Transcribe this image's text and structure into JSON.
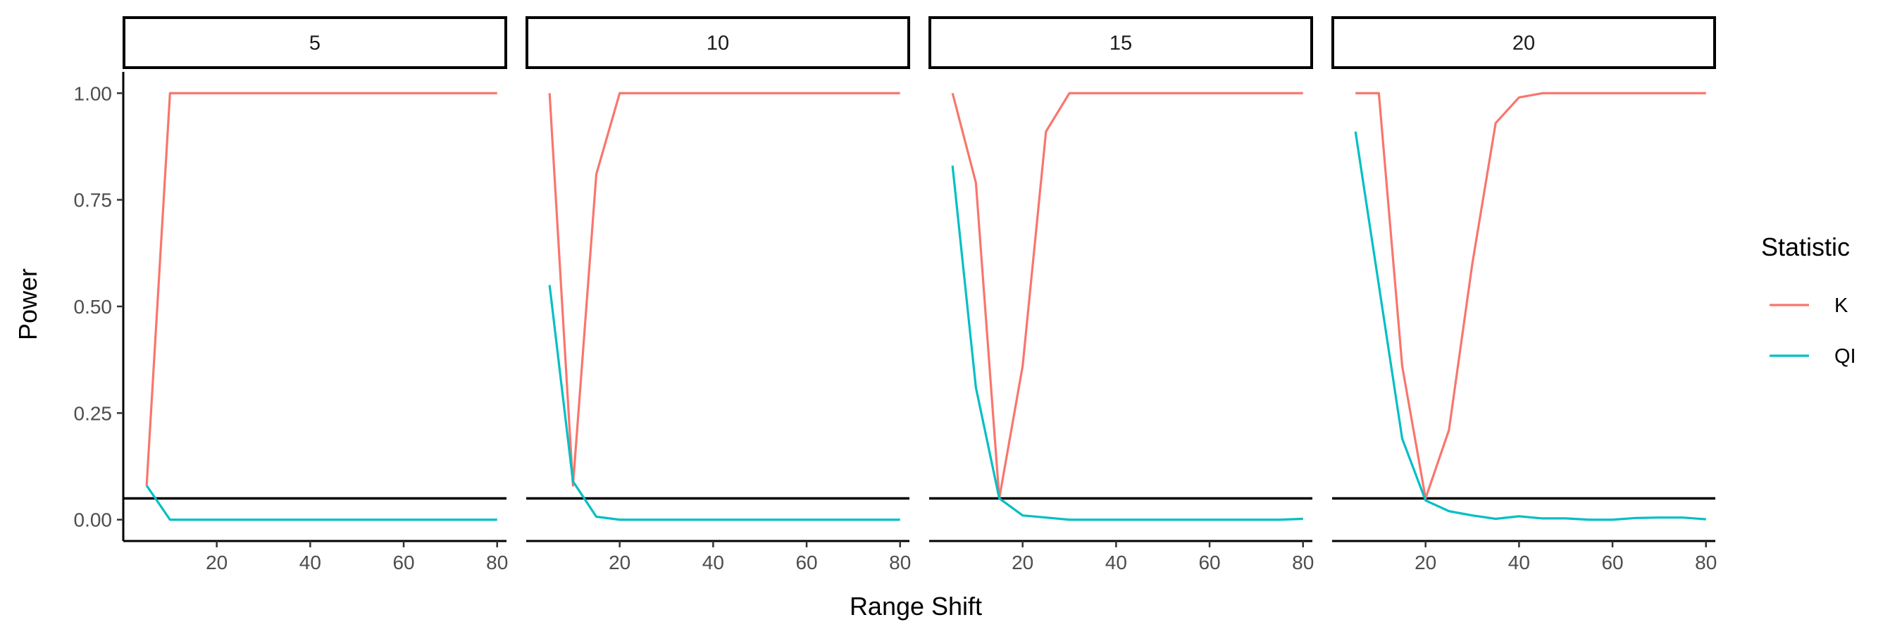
{
  "chart_data": {
    "type": "line",
    "title": "",
    "xlabel": "Range Shift",
    "ylabel": "Power",
    "xlim": [
      0,
      82
    ],
    "ylim": [
      -0.05,
      1.05
    ],
    "x_ticks": [
      20,
      40,
      60,
      80
    ],
    "y_ticks": [
      0.0,
      0.25,
      0.5,
      0.75,
      1.0
    ],
    "y_tick_labels": [
      "0.00",
      "0.25",
      "0.50",
      "0.75",
      "1.00"
    ],
    "x_tick_labels": [
      "20",
      "40",
      "60",
      "80"
    ],
    "reference_line": 0.05,
    "grid": false,
    "legend": {
      "title": "Statistic",
      "position": "right",
      "entries": [
        {
          "label": "K",
          "color": "#F8766D"
        },
        {
          "label": "QI",
          "color": "#00BFC4"
        }
      ]
    },
    "panels": [
      {
        "label": "5",
        "series": [
          {
            "name": "K",
            "color": "#F8766D",
            "x": [
              5,
              10,
              15,
              20,
              25,
              30,
              35,
              40,
              45,
              50,
              55,
              60,
              65,
              70,
              75,
              80
            ],
            "y": [
              0.08,
              1.0,
              1.0,
              1.0,
              1.0,
              1.0,
              1.0,
              1.0,
              1.0,
              1.0,
              1.0,
              1.0,
              1.0,
              1.0,
              1.0,
              1.0
            ]
          },
          {
            "name": "QI",
            "color": "#00BFC4",
            "x": [
              5,
              10,
              15,
              20,
              25,
              30,
              35,
              40,
              45,
              50,
              55,
              60,
              65,
              70,
              75,
              80
            ],
            "y": [
              0.08,
              0.0,
              0.0,
              0.0,
              0.0,
              0.0,
              0.0,
              0.0,
              0.0,
              0.0,
              0.0,
              0.0,
              0.0,
              0.0,
              0.0,
              0.0
            ]
          }
        ]
      },
      {
        "label": "10",
        "series": [
          {
            "name": "K",
            "color": "#F8766D",
            "x": [
              5,
              10,
              15,
              20,
              25,
              30,
              35,
              40,
              45,
              50,
              55,
              60,
              65,
              70,
              75,
              80
            ],
            "y": [
              1.0,
              0.08,
              0.81,
              1.0,
              1.0,
              1.0,
              1.0,
              1.0,
              1.0,
              1.0,
              1.0,
              1.0,
              1.0,
              1.0,
              1.0,
              1.0
            ]
          },
          {
            "name": "QI",
            "color": "#00BFC4",
            "x": [
              5,
              10,
              15,
              20,
              25,
              30,
              35,
              40,
              45,
              50,
              55,
              60,
              65,
              70,
              75,
              80
            ],
            "y": [
              0.55,
              0.09,
              0.007,
              0.0,
              0.0,
              0.0,
              0.0,
              0.0,
              0.0,
              0.0,
              0.0,
              0.0,
              0.0,
              0.0,
              0.0,
              0.0
            ]
          }
        ]
      },
      {
        "label": "15",
        "series": [
          {
            "name": "K",
            "color": "#F8766D",
            "x": [
              5,
              10,
              15,
              20,
              25,
              30,
              35,
              40,
              45,
              50,
              55,
              60,
              65,
              70,
              75,
              80
            ],
            "y": [
              1.0,
              0.79,
              0.05,
              0.36,
              0.91,
              1.0,
              1.0,
              1.0,
              1.0,
              1.0,
              1.0,
              1.0,
              1.0,
              1.0,
              1.0,
              1.0
            ]
          },
          {
            "name": "QI",
            "color": "#00BFC4",
            "x": [
              5,
              10,
              15,
              20,
              25,
              30,
              35,
              40,
              45,
              50,
              55,
              60,
              65,
              70,
              75,
              80
            ],
            "y": [
              0.83,
              0.31,
              0.05,
              0.01,
              0.005,
              0.0,
              0.0,
              0.0,
              0.0,
              0.0,
              0.0,
              0.0,
              0.0,
              0.0,
              0.0,
              0.002
            ]
          }
        ]
      },
      {
        "label": "20",
        "series": [
          {
            "name": "K",
            "color": "#F8766D",
            "x": [
              5,
              10,
              15,
              20,
              25,
              30,
              35,
              40,
              45,
              50,
              55,
              60,
              65,
              70,
              75,
              80
            ],
            "y": [
              1.0,
              1.0,
              0.36,
              0.05,
              0.21,
              0.6,
              0.93,
              0.99,
              1.0,
              1.0,
              1.0,
              1.0,
              1.0,
              1.0,
              1.0,
              1.0
            ]
          },
          {
            "name": "QI",
            "color": "#00BFC4",
            "x": [
              5,
              10,
              15,
              20,
              25,
              30,
              35,
              40,
              45,
              50,
              55,
              60,
              65,
              70,
              75,
              80
            ],
            "y": [
              0.91,
              0.55,
              0.19,
              0.045,
              0.02,
              0.01,
              0.002,
              0.008,
              0.003,
              0.003,
              0.0,
              0.0,
              0.004,
              0.005,
              0.005,
              0.001
            ]
          }
        ]
      }
    ]
  }
}
